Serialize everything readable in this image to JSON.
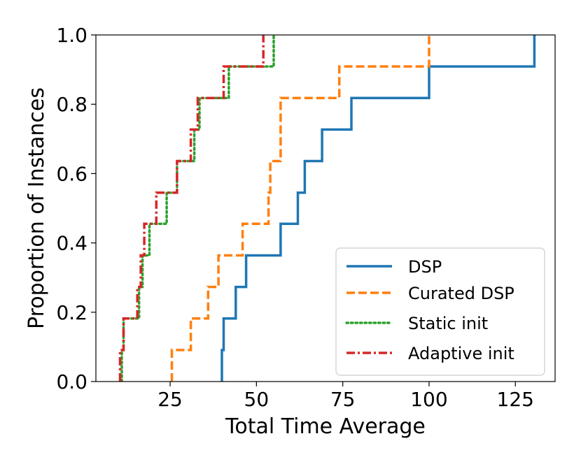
{
  "chart_data": {
    "type": "line",
    "subtype": "empirical-cdf-step",
    "title": "",
    "xlabel": "Total Time Average",
    "ylabel": "Proportion of Instances",
    "xlim": [
      3.5,
      136.5
    ],
    "ylim": [
      0.0,
      1.0
    ],
    "xticks": [
      25,
      50,
      75,
      100,
      125
    ],
    "yticks": [
      0.0,
      0.2,
      0.4,
      0.6,
      0.8,
      1.0
    ],
    "xtick_labels": [
      "25",
      "50",
      "75",
      "100",
      "125"
    ],
    "ytick_labels": [
      "0.0",
      "0.2",
      "0.4",
      "0.6",
      "0.8",
      "1.0"
    ],
    "grid": false,
    "legend_position": "lower-right",
    "series": [
      {
        "name": "DSP",
        "color": "#1f77b4",
        "dash": "solid",
        "x": [
          40,
          40.5,
          44,
          47,
          57,
          62,
          64,
          69,
          77.5,
          100,
          130.5
        ],
        "y": [
          0.091,
          0.182,
          0.273,
          0.364,
          0.455,
          0.545,
          0.636,
          0.727,
          0.818,
          0.909,
          1.0
        ]
      },
      {
        "name": "Curated DSP",
        "color": "#ff7f0e",
        "dash": "dashed",
        "x": [
          25.5,
          31,
          36,
          39,
          46,
          53.5,
          54,
          57,
          74,
          100
        ],
        "y": [
          0.091,
          0.182,
          0.273,
          0.364,
          0.455,
          0.545,
          0.636,
          0.818,
          0.909,
          1.0
        ]
      },
      {
        "name": "Static init",
        "color": "#2ca02c",
        "dash": "dotted",
        "x": [
          11,
          11.5,
          16,
          17,
          19,
          24,
          27,
          32,
          33.5,
          42,
          55
        ],
        "y": [
          0.091,
          0.182,
          0.273,
          0.364,
          0.455,
          0.545,
          0.636,
          0.727,
          0.818,
          0.909,
          1.0
        ]
      },
      {
        "name": "Adaptive init",
        "color": "#d62728",
        "dash": "dashdot",
        "x": [
          10.5,
          11.5,
          15.5,
          16.5,
          17.5,
          21,
          27,
          31,
          33,
          40.5,
          52
        ],
        "y": [
          0.091,
          0.182,
          0.273,
          0.364,
          0.455,
          0.545,
          0.636,
          0.727,
          0.818,
          0.909,
          1.0
        ]
      }
    ]
  }
}
